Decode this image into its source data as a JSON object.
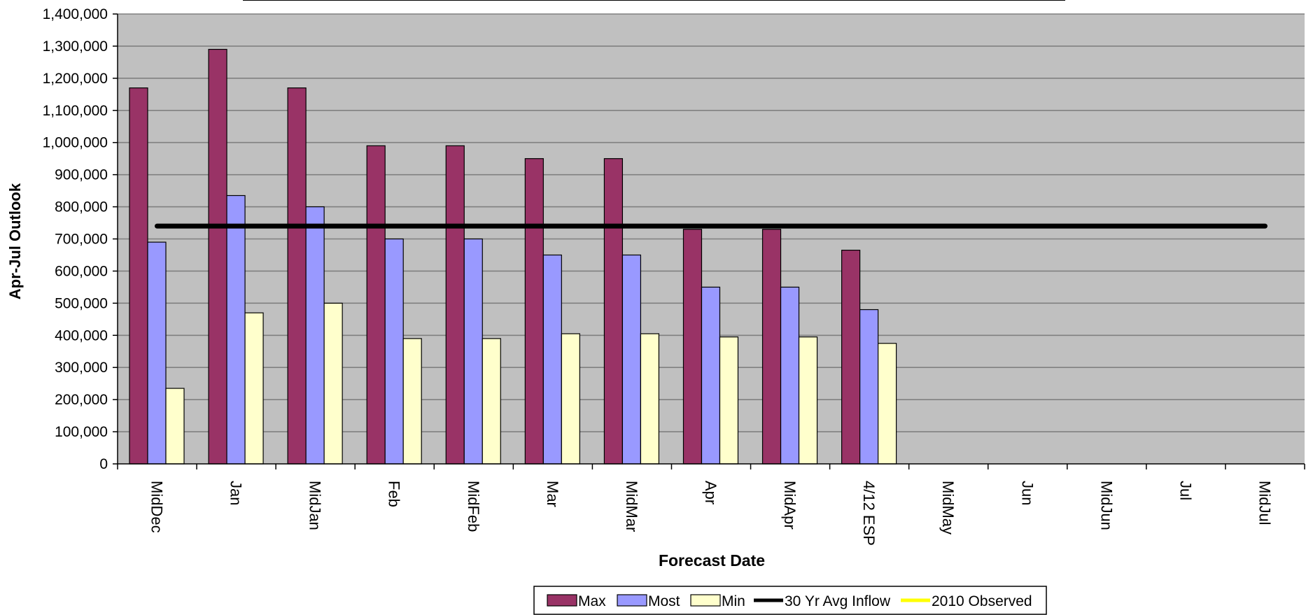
{
  "chart_data": {
    "type": "bar",
    "title": "",
    "xlabel": "Forecast Date",
    "ylabel": "Apr-Jul Outlook",
    "ylim": [
      0,
      1400000
    ],
    "ytick_step": 100000,
    "grid": true,
    "legend_position": "bottom",
    "categories": [
      "MidDec",
      "Jan",
      "MidJan",
      "Feb",
      "MidFeb",
      "Mar",
      "MidMar",
      "Apr",
      "MidApr",
      "4/12 ESP",
      "MidMay",
      "Jun",
      "MidJun",
      "Jul",
      "MidJul"
    ],
    "series": [
      {
        "name": "Max",
        "color": "#993366",
        "values": [
          1170000,
          1290000,
          1170000,
          990000,
          990000,
          950000,
          950000,
          730000,
          730000,
          665000,
          null,
          null,
          null,
          null,
          null
        ]
      },
      {
        "name": "Most",
        "color": "#9999ff",
        "values": [
          690000,
          835000,
          800000,
          700000,
          700000,
          650000,
          650000,
          550000,
          550000,
          480000,
          null,
          null,
          null,
          null,
          null
        ]
      },
      {
        "name": "Min",
        "color": "#ffffcc",
        "values": [
          235000,
          470000,
          500000,
          390000,
          390000,
          405000,
          405000,
          395000,
          395000,
          375000,
          null,
          null,
          null,
          null,
          null
        ]
      }
    ],
    "lines": [
      {
        "name": "30 Yr Avg Inflow",
        "color": "#000000",
        "value": 740000
      },
      {
        "name": "2010 Observed",
        "color": "#ffff00",
        "value": null
      }
    ]
  }
}
